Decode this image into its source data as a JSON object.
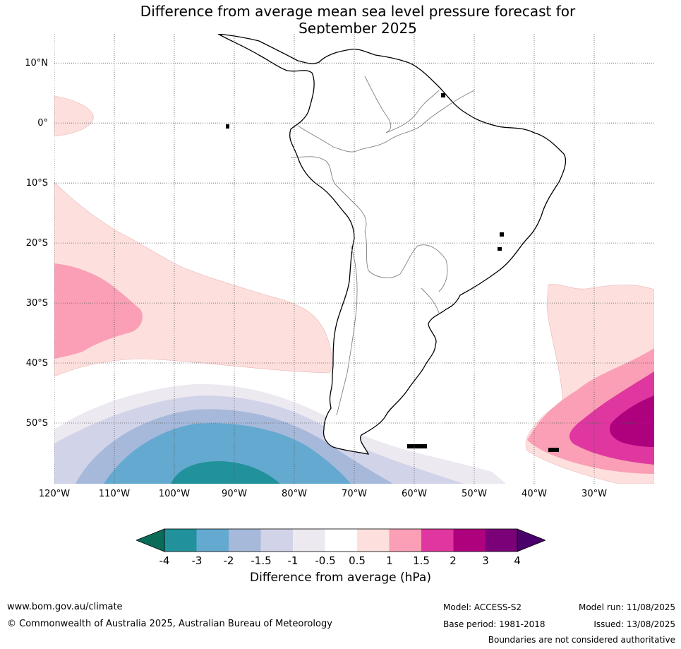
{
  "title": {
    "line1": "Difference from average mean sea level pressure forecast for",
    "line2": "September 2025"
  },
  "map": {
    "projection": "equirectangular",
    "lon_range": [
      "120°W",
      "20°W"
    ],
    "lat_range": [
      "15°N",
      "60°S"
    ],
    "lat_labels": [
      "10°N",
      "0°",
      "10°S",
      "20°S",
      "30°S",
      "40°S",
      "50°S"
    ],
    "lon_labels": [
      "120°W",
      "110°W",
      "100°W",
      "90°W",
      "80°W",
      "70°W",
      "60°W",
      "50°W",
      "40°W",
      "30°W"
    ],
    "features": {
      "coastline": "South America",
      "country_borders": true,
      "gridlines": "dotted"
    }
  },
  "colorbar": {
    "title": "Difference from average (hPa)",
    "ticks": [
      "-4",
      "-3",
      "-2",
      "-1.5",
      "-1",
      "-0.5",
      "0.5",
      "1",
      "1.5",
      "2",
      "3",
      "4"
    ],
    "colors": {
      "below_-4": "#0b6b59",
      "-4_to_-3": "#21929b",
      "-3_to_-2": "#64a9d0",
      "-2_to_-1.5": "#a6b9da",
      "-1.5_to_-1": "#d1d3e8",
      "-1_to_-0.5": "#ede9f1",
      "-0.5_to_0.5": "#ffffff",
      "0.5_to_1": "#fde0dd",
      "1_to_1.5": "#fa9fb5",
      "1.5_to_2": "#df379f",
      "2_to_3": "#ae017e",
      "3_to_4": "#7a0177",
      "above_4": "#49006a"
    }
  },
  "footer": {
    "url": "www.bom.gov.au/climate",
    "copyright": "© Commonwealth of Australia 2025, Australian Bureau of Meteorology",
    "model": "Model: ACCESS-S2",
    "base_period": "Base period: 1981-2018",
    "model_run": "Model run: 11/08/2025",
    "issued": "Issued: 13/08/2025",
    "disclaimer": "Boundaries are not considered authoritative"
  }
}
